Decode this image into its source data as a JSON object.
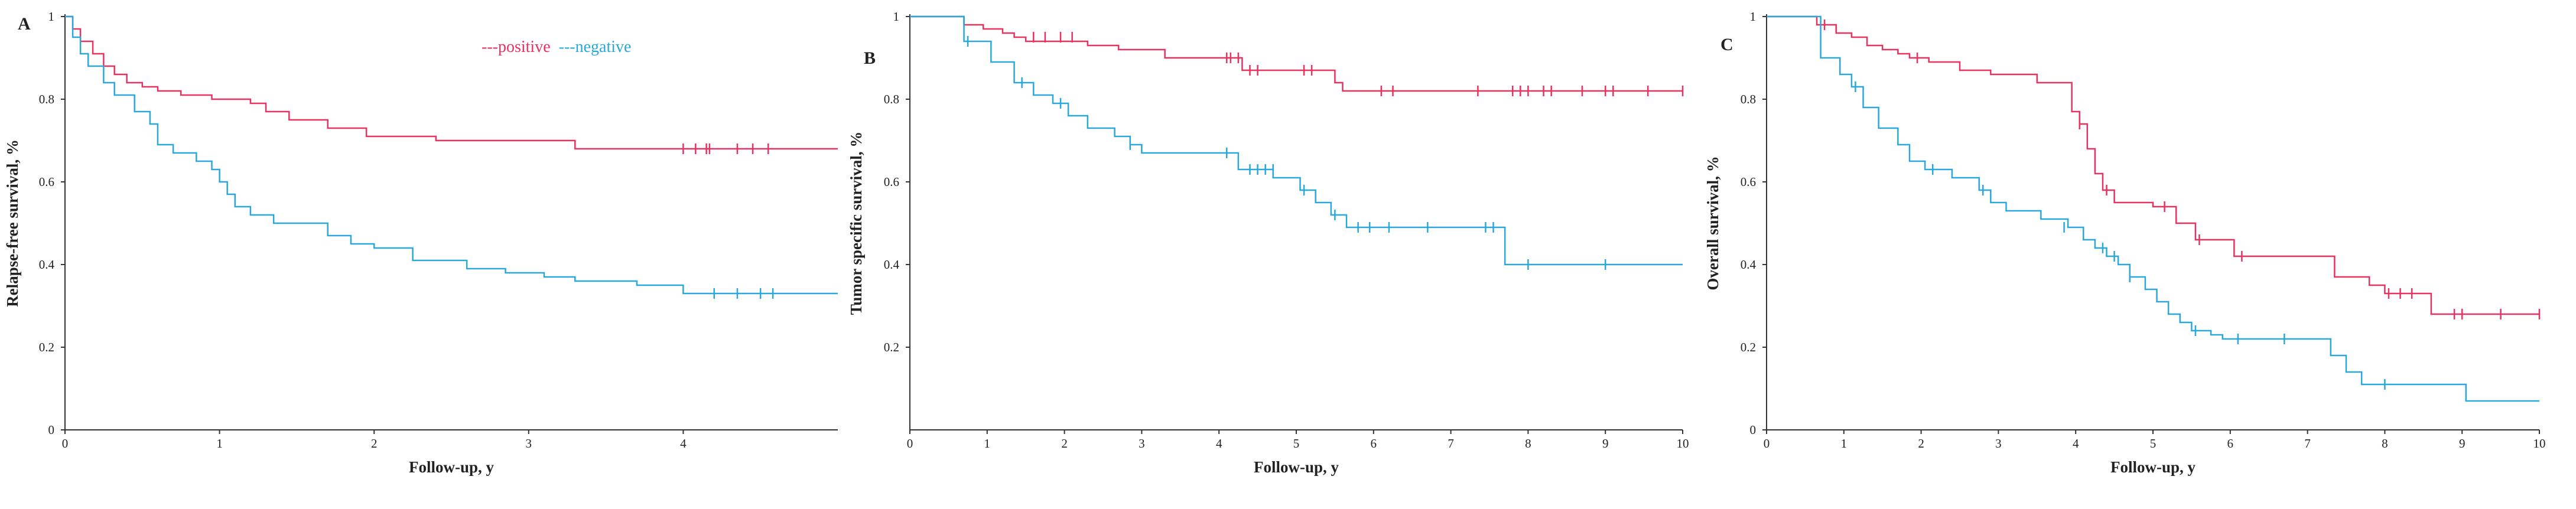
{
  "colors": {
    "positive": "#e8325f",
    "negative": "#2aa8dc",
    "axis": "#333333"
  },
  "legend": {
    "positive": "---positive",
    "negative": "---negative"
  },
  "chart_data": [
    {
      "type": "line",
      "step": true,
      "panel": "A",
      "xlabel": "Follow-up, y",
      "ylabel": "Relapse-free survival, %",
      "xlim": [
        0,
        5
      ],
      "ylim": [
        0,
        1
      ],
      "xticks": [
        0,
        1,
        2,
        3,
        4
      ],
      "yticks": [
        0,
        0.2,
        0.4,
        0.6,
        0.8,
        1
      ],
      "ytick_labels": [
        "0",
        "0.2",
        "0.4",
        "0.6",
        "0.8",
        "1"
      ],
      "has_legend": true,
      "series": [
        {
          "name": "positive",
          "x": [
            0,
            0.05,
            0.1,
            0.18,
            0.25,
            0.32,
            0.4,
            0.5,
            0.6,
            0.75,
            0.95,
            1.2,
            1.3,
            1.45,
            1.7,
            1.95,
            2.4,
            3.3,
            5.0
          ],
          "y": [
            1.0,
            0.97,
            0.94,
            0.91,
            0.88,
            0.86,
            0.84,
            0.83,
            0.82,
            0.81,
            0.8,
            0.79,
            0.77,
            0.75,
            0.73,
            0.71,
            0.7,
            0.68,
            0.68
          ],
          "censor_x": [
            4.0,
            4.08,
            4.15,
            4.17,
            4.35,
            4.45,
            4.55
          ],
          "censor_y": [
            0.68,
            0.68,
            0.68,
            0.68,
            0.68,
            0.68,
            0.68
          ]
        },
        {
          "name": "negative",
          "x": [
            0,
            0.05,
            0.1,
            0.15,
            0.25,
            0.32,
            0.45,
            0.55,
            0.6,
            0.7,
            0.85,
            0.95,
            1.0,
            1.05,
            1.1,
            1.2,
            1.35,
            1.7,
            1.85,
            2.0,
            2.25,
            2.6,
            2.85,
            3.1,
            3.3,
            3.7,
            4.0,
            5.0
          ],
          "y": [
            1.0,
            0.95,
            0.91,
            0.88,
            0.84,
            0.81,
            0.77,
            0.74,
            0.69,
            0.67,
            0.65,
            0.63,
            0.6,
            0.57,
            0.54,
            0.52,
            0.5,
            0.47,
            0.45,
            0.44,
            0.41,
            0.39,
            0.38,
            0.37,
            0.36,
            0.35,
            0.33,
            0.33
          ],
          "censor_x": [
            4.2,
            4.35,
            4.5,
            4.58
          ],
          "censor_y": [
            0.33,
            0.33,
            0.33,
            0.33
          ]
        }
      ]
    },
    {
      "type": "line",
      "step": true,
      "panel": "B",
      "xlabel": "Follow-up, y",
      "ylabel": "Tumor specific survival, %",
      "xlim": [
        0,
        10
      ],
      "ylim": [
        0,
        1
      ],
      "xticks": [
        0,
        1,
        2,
        3,
        4,
        5,
        6,
        7,
        8,
        9,
        10
      ],
      "yticks": [
        0.2,
        0.4,
        0.6,
        0.8,
        1
      ],
      "ytick_labels": [
        "0.2",
        "0.4",
        "0.6",
        "0.8",
        "1"
      ],
      "has_legend": false,
      "series": [
        {
          "name": "positive",
          "x": [
            0,
            0.7,
            0.95,
            1.2,
            1.35,
            1.5,
            2.3,
            2.7,
            3.3,
            4.3,
            5.5,
            5.6,
            10.0
          ],
          "y": [
            1.0,
            0.98,
            0.97,
            0.96,
            0.95,
            0.94,
            0.93,
            0.92,
            0.9,
            0.87,
            0.84,
            0.82,
            0.82
          ],
          "censor_x": [
            1.6,
            1.75,
            1.95,
            2.1,
            4.1,
            4.15,
            4.25,
            4.4,
            4.5,
            5.1,
            5.2,
            6.1,
            6.25,
            7.35,
            7.8,
            7.9,
            8.0,
            8.2,
            8.3,
            8.7,
            9.0,
            9.1,
            9.55,
            10.0
          ],
          "censor_y": [
            0.95,
            0.95,
            0.95,
            0.95,
            0.9,
            0.9,
            0.9,
            0.87,
            0.87,
            0.87,
            0.87,
            0.82,
            0.82,
            0.82,
            0.82,
            0.82,
            0.82,
            0.82,
            0.82,
            0.82,
            0.82,
            0.82,
            0.82,
            0.82
          ]
        },
        {
          "name": "negative",
          "x": [
            0,
            0.7,
            1.05,
            1.35,
            1.6,
            1.85,
            2.05,
            2.3,
            2.65,
            2.85,
            3.0,
            4.25,
            4.7,
            5.05,
            5.25,
            5.45,
            5.65,
            7.7,
            10.0
          ],
          "y": [
            1.0,
            0.94,
            0.89,
            0.84,
            0.81,
            0.79,
            0.76,
            0.73,
            0.71,
            0.69,
            0.67,
            0.63,
            0.61,
            0.58,
            0.55,
            0.52,
            0.49,
            0.4,
            0.4
          ],
          "censor_x": [
            0.75,
            1.45,
            1.95,
            2.85,
            4.1,
            4.4,
            4.5,
            4.6,
            4.7,
            5.1,
            5.5,
            5.8,
            5.95,
            6.2,
            6.7,
            7.45,
            7.55,
            8.0,
            9.0
          ],
          "censor_y": [
            0.94,
            0.84,
            0.79,
            0.69,
            0.67,
            0.63,
            0.63,
            0.63,
            0.63,
            0.58,
            0.52,
            0.49,
            0.49,
            0.49,
            0.49,
            0.49,
            0.49,
            0.4,
            0.4
          ]
        }
      ]
    },
    {
      "type": "line",
      "step": true,
      "panel": "C",
      "xlabel": "Follow-up, y",
      "ylabel": "Overall survival, %",
      "xlim": [
        0,
        10
      ],
      "ylim": [
        0,
        1
      ],
      "xticks": [
        0,
        1,
        2,
        3,
        4,
        5,
        6,
        7,
        8,
        9,
        10
      ],
      "yticks": [
        0,
        0.2,
        0.4,
        0.6,
        0.8,
        1
      ],
      "ytick_labels": [
        "0",
        "0.2",
        "0.4",
        "0.6",
        "0.8",
        "1"
      ],
      "has_legend": false,
      "series": [
        {
          "name": "positive",
          "x": [
            0,
            0.65,
            0.9,
            1.1,
            1.3,
            1.5,
            1.7,
            1.85,
            2.1,
            2.5,
            2.9,
            3.5,
            3.95,
            4.05,
            4.15,
            4.25,
            4.35,
            4.5,
            5.0,
            5.3,
            5.55,
            6.05,
            6.25,
            7.35,
            7.8,
            8.0,
            8.6,
            10.0
          ],
          "y": [
            1.0,
            0.98,
            0.96,
            0.95,
            0.93,
            0.92,
            0.91,
            0.9,
            0.89,
            0.87,
            0.86,
            0.84,
            0.77,
            0.74,
            0.68,
            0.62,
            0.58,
            0.55,
            0.54,
            0.5,
            0.46,
            0.42,
            0.42,
            0.37,
            0.35,
            0.33,
            0.28,
            0.28
          ],
          "censor_x": [
            0.75,
            1.95,
            4.05,
            4.4,
            5.15,
            5.6,
            6.15,
            8.05,
            8.2,
            8.35,
            8.9,
            9.0,
            9.5,
            10.0
          ],
          "censor_y": [
            0.98,
            0.9,
            0.74,
            0.58,
            0.54,
            0.46,
            0.42,
            0.33,
            0.33,
            0.33,
            0.28,
            0.28,
            0.28,
            0.28
          ]
        },
        {
          "name": "negative",
          "x": [
            0,
            0.7,
            0.95,
            1.1,
            1.25,
            1.45,
            1.7,
            1.85,
            2.05,
            2.4,
            2.75,
            2.9,
            3.1,
            3.55,
            3.9,
            4.1,
            4.25,
            4.4,
            4.55,
            4.7,
            4.9,
            5.05,
            5.2,
            5.35,
            5.5,
            5.75,
            5.9,
            7.3,
            7.5,
            7.7,
            9.05,
            10.0
          ],
          "y": [
            1.0,
            0.9,
            0.86,
            0.83,
            0.78,
            0.73,
            0.69,
            0.65,
            0.63,
            0.61,
            0.58,
            0.55,
            0.53,
            0.51,
            0.49,
            0.46,
            0.44,
            0.42,
            0.4,
            0.37,
            0.34,
            0.31,
            0.28,
            0.26,
            0.24,
            0.23,
            0.22,
            0.18,
            0.14,
            0.11,
            0.07,
            0.07
          ],
          "censor_x": [
            1.15,
            2.15,
            2.8,
            3.85,
            4.35,
            4.5,
            4.7,
            5.55,
            6.1,
            6.7,
            8.0
          ],
          "censor_y": [
            0.83,
            0.63,
            0.58,
            0.49,
            0.44,
            0.42,
            0.37,
            0.24,
            0.22,
            0.22,
            0.11
          ]
        }
      ]
    }
  ]
}
